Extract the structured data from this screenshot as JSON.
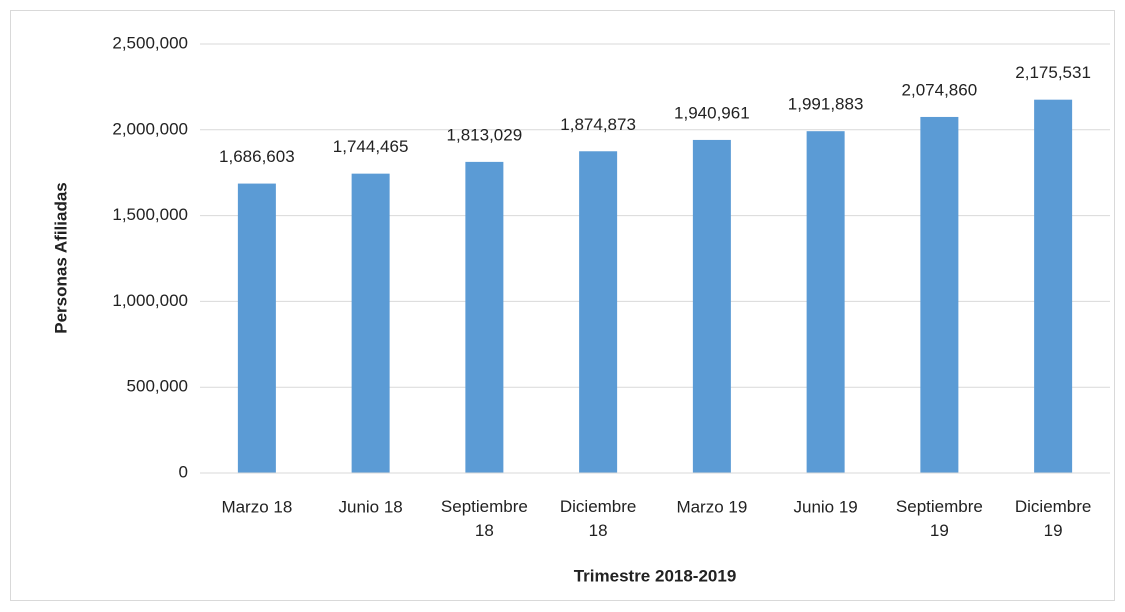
{
  "chart_data": {
    "type": "bar",
    "x_label": "Trimestre 2018-2019",
    "y_label": "Personas Afiliadas",
    "categories": [
      "Marzo 18",
      "Junio 18",
      "Septiembre 18",
      "Diciembre 18",
      "Marzo 19",
      "Junio 19",
      "Septiembre 19",
      "Diciembre 19"
    ],
    "values": [
      1686603,
      1744465,
      1813029,
      1874873,
      1940961,
      1991883,
      2074860,
      2175531
    ],
    "value_labels": [
      "1,686,603",
      "1,744,465",
      "1,813,029",
      "1,874,873",
      "1,940,961",
      "1,991,883",
      "2,074,860",
      "2,175,531"
    ],
    "color": "#5b9bd5",
    "ylim": [
      0,
      2500000
    ],
    "yticks": [
      0,
      {
        "value": 500000,
        "label": "500,000"
      },
      {
        "value": 1000000,
        "label": "1,000,000"
      },
      {
        "value": 1500000,
        "label": "1,500,000"
      },
      {
        "value": 2000000,
        "label": "2,000,000"
      },
      {
        "value": 2500000,
        "label": "2,500,000"
      }
    ],
    "grid": true
  }
}
